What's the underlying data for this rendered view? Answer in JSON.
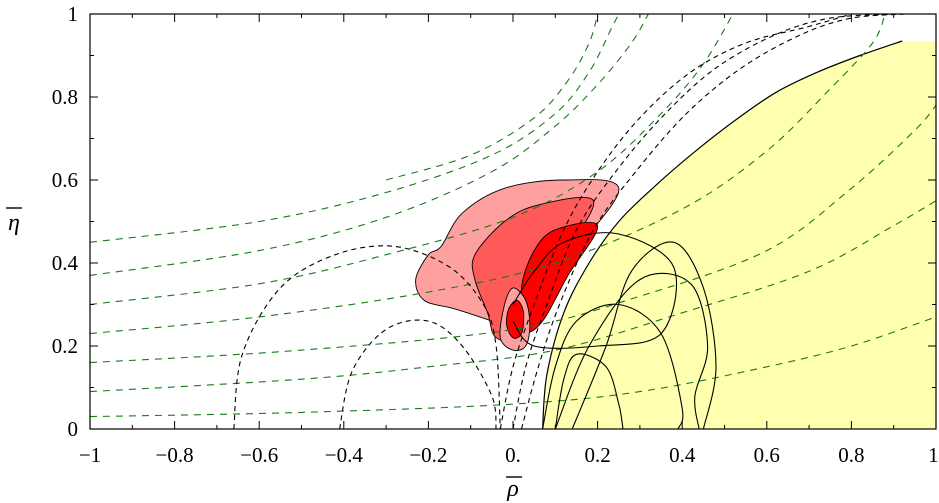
{
  "chart_data": {
    "type": "contour",
    "xlabel": "ρ",
    "ylabel": "η",
    "xlim": [
      -1,
      1
    ],
    "ylim": [
      0,
      1
    ],
    "x_ticks": [
      -1,
      -0.8,
      -0.6,
      -0.4,
      -0.2,
      0,
      0.2,
      0.4,
      0.6,
      0.8,
      1
    ],
    "x_tick_labels": [
      "−1",
      "−0.8",
      "−0.6",
      "−0.4",
      "−0.2",
      "0.",
      "0.2",
      "0.4",
      "0.6",
      "0.8",
      "1."
    ],
    "y_ticks": [
      0,
      0.2,
      0.4,
      0.6,
      0.8,
      1
    ],
    "y_tick_labels": [
      "0",
      "0.2",
      "0.4",
      "0.6",
      "0.8",
      "1"
    ],
    "overbar_on_axis_labels": true,
    "grid": false,
    "colors": {
      "allowed_region_fill": "#ffffb0",
      "confidence_outer": "#ffa0a0",
      "confidence_middle": "#ff5a5a",
      "confidence_inner": "#ff0000",
      "dashed_black": "#000000",
      "dashed_green": "#1a7a1a"
    },
    "regions": [
      {
        "id": "allowed-region",
        "boundary": [
          [
            0.07,
            0
          ],
          [
            0.08,
            0.13
          ],
          [
            0.12,
            0.28
          ],
          [
            0.18,
            0.4
          ],
          [
            0.25,
            0.5
          ],
          [
            0.33,
            0.58
          ],
          [
            0.42,
            0.66
          ],
          [
            0.52,
            0.74
          ],
          [
            0.62,
            0.81
          ],
          [
            0.72,
            0.86
          ],
          [
            0.82,
            0.9
          ],
          [
            0.92,
            0.935
          ],
          [
            1.0,
            0.935
          ],
          [
            1.0,
            0
          ]
        ]
      },
      {
        "id": "contour-outer",
        "boundary": [
          [
            -0.17,
            0.44
          ],
          [
            -0.12,
            0.52
          ],
          [
            -0.02,
            0.58
          ],
          [
            0.12,
            0.6
          ],
          [
            0.25,
            0.58
          ],
          [
            0.15,
            0.43
          ],
          [
            0.07,
            0.3
          ],
          [
            0.0,
            0.24
          ],
          [
            -0.05,
            0.26
          ],
          [
            -0.14,
            0.29
          ],
          [
            -0.21,
            0.31
          ],
          [
            -0.23,
            0.36
          ],
          [
            -0.2,
            0.42
          ]
        ]
      },
      {
        "id": "contour-middle",
        "boundary": [
          [
            -0.09,
            0.42
          ],
          [
            -0.02,
            0.5
          ],
          [
            0.06,
            0.54
          ],
          [
            0.19,
            0.55
          ],
          [
            0.12,
            0.42
          ],
          [
            0.06,
            0.32
          ],
          [
            0.02,
            0.22
          ],
          [
            -0.04,
            0.22
          ],
          [
            -0.06,
            0.28
          ],
          [
            -0.09,
            0.36
          ]
        ]
      },
      {
        "id": "contour-inner",
        "boundary": [
          [
            0.02,
            0.34
          ],
          [
            0.05,
            0.43
          ],
          [
            0.1,
            0.48
          ],
          [
            0.2,
            0.49
          ],
          [
            0.13,
            0.37
          ],
          [
            0.07,
            0.26
          ],
          [
            0.03,
            0.24
          ]
        ]
      },
      {
        "id": "contour-small",
        "boundary": [
          [
            -0.02,
            0.3
          ],
          [
            0.0,
            0.34
          ],
          [
            0.03,
            0.31
          ],
          [
            0.04,
            0.25
          ],
          [
            0.03,
            0.2
          ],
          [
            0.0,
            0.19
          ],
          [
            -0.03,
            0.22
          ]
        ]
      }
    ],
    "solid_curves": [
      [
        [
          0.07,
          0
        ],
        [
          0.1,
          0.15
        ],
        [
          0.15,
          0.26
        ],
        [
          0.25,
          0.3
        ],
        [
          0.35,
          0.23
        ],
        [
          0.4,
          0.05
        ],
        [
          0.39,
          0
        ]
      ],
      [
        [
          0.1,
          0
        ],
        [
          0.18,
          0.2
        ],
        [
          0.3,
          0.36
        ],
        [
          0.42,
          0.35
        ],
        [
          0.46,
          0.2
        ],
        [
          0.43,
          0.08
        ],
        [
          0.44,
          0
        ]
      ],
      [
        [
          0.14,
          0
        ],
        [
          0.22,
          0.2
        ],
        [
          0.28,
          0.38
        ],
        [
          0.38,
          0.45
        ],
        [
          0.45,
          0.34
        ],
        [
          0.48,
          0.15
        ],
        [
          0.45,
          0
        ]
      ],
      [
        [
          0.0,
          0.3
        ],
        [
          0.05,
          0.38
        ],
        [
          0.12,
          0.45
        ],
        [
          0.25,
          0.47
        ],
        [
          0.38,
          0.39
        ],
        [
          0.35,
          0.23
        ],
        [
          0.2,
          0.2
        ],
        [
          0.05,
          0.2
        ],
        [
          0.0,
          0.26
        ]
      ],
      [
        [
          0.1,
          0
        ],
        [
          0.12,
          0.12
        ],
        [
          0.15,
          0.18
        ],
        [
          0.22,
          0.15
        ],
        [
          0.25,
          0.06
        ],
        [
          0.26,
          0
        ]
      ]
    ],
    "dashed_black_curves": [
      [
        [
          -0.66,
          0
        ],
        [
          -0.64,
          0.18
        ],
        [
          -0.55,
          0.34
        ],
        [
          -0.42,
          0.42
        ],
        [
          -0.28,
          0.44
        ],
        [
          -0.15,
          0.39
        ],
        [
          -0.07,
          0.3
        ],
        [
          -0.04,
          0.2
        ],
        [
          -0.03,
          0
        ]
      ],
      [
        [
          -0.41,
          0
        ],
        [
          -0.38,
          0.14
        ],
        [
          -0.3,
          0.24
        ],
        [
          -0.2,
          0.26
        ],
        [
          -0.12,
          0.2
        ],
        [
          -0.05,
          0.08
        ],
        [
          -0.04,
          0
        ]
      ],
      [
        [
          -0.03,
          0
        ],
        [
          0.0,
          0.15
        ],
        [
          0.05,
          0.3
        ],
        [
          0.12,
          0.48
        ],
        [
          0.2,
          0.62
        ],
        [
          0.3,
          0.75
        ],
        [
          0.42,
          0.86
        ],
        [
          0.55,
          0.93
        ],
        [
          0.7,
          0.97
        ],
        [
          0.8,
          1.0
        ]
      ],
      [
        [
          0.0,
          0
        ],
        [
          0.03,
          0.15
        ],
        [
          0.08,
          0.3
        ],
        [
          0.15,
          0.48
        ],
        [
          0.25,
          0.63
        ],
        [
          0.36,
          0.76
        ],
        [
          0.48,
          0.87
        ],
        [
          0.62,
          0.95
        ],
        [
          0.75,
          0.99
        ],
        [
          0.9,
          1.0
        ]
      ],
      [
        [
          0.02,
          0
        ],
        [
          0.06,
          0.15
        ],
        [
          0.11,
          0.3
        ],
        [
          0.19,
          0.48
        ],
        [
          0.29,
          0.62
        ],
        [
          0.41,
          0.76
        ],
        [
          0.54,
          0.87
        ],
        [
          0.68,
          0.95
        ],
        [
          0.8,
          0.99
        ],
        [
          0.93,
          1.0
        ]
      ]
    ],
    "dashed_green_curves": [
      [
        [
          -1,
          0.03
        ],
        [
          -0.5,
          0.04
        ],
        [
          0,
          0.06
        ],
        [
          0.3,
          0.09
        ],
        [
          0.6,
          0.15
        ],
        [
          0.8,
          0.2
        ],
        [
          1.0,
          0.27
        ]
      ],
      [
        [
          -1,
          0.09
        ],
        [
          -0.5,
          0.12
        ],
        [
          -0.2,
          0.15
        ],
        [
          0.1,
          0.19
        ],
        [
          0.4,
          0.28
        ],
        [
          0.7,
          0.38
        ],
        [
          0.9,
          0.49
        ],
        [
          1.0,
          0.55
        ]
      ],
      [
        [
          -1,
          0.16
        ],
        [
          -0.5,
          0.19
        ],
        [
          0,
          0.24
        ],
        [
          0.3,
          0.32
        ],
        [
          0.6,
          0.43
        ],
        [
          0.8,
          0.58
        ],
        [
          0.95,
          0.72
        ],
        [
          1.0,
          0.78
        ]
      ],
      [
        [
          -1,
          0.23
        ],
        [
          -0.6,
          0.27
        ],
        [
          -0.2,
          0.33
        ],
        [
          0.1,
          0.4
        ],
        [
          0.4,
          0.53
        ],
        [
          0.6,
          0.67
        ],
        [
          0.75,
          0.82
        ],
        [
          0.85,
          0.93
        ],
        [
          0.88,
          1.0
        ]
      ],
      [
        [
          -1,
          0.3
        ],
        [
          -0.6,
          0.35
        ],
        [
          -0.3,
          0.42
        ],
        [
          0,
          0.51
        ],
        [
          0.2,
          0.62
        ],
        [
          0.35,
          0.76
        ],
        [
          0.45,
          0.88
        ],
        [
          0.52,
          1.0
        ]
      ],
      [
        [
          -1,
          0.37
        ],
        [
          -0.6,
          0.43
        ],
        [
          -0.3,
          0.51
        ],
        [
          -0.05,
          0.62
        ],
        [
          0.1,
          0.73
        ],
        [
          0.2,
          0.83
        ],
        [
          0.28,
          0.93
        ],
        [
          0.32,
          1.0
        ]
      ],
      [
        [
          -1,
          0.45
        ],
        [
          -0.6,
          0.5
        ],
        [
          -0.3,
          0.57
        ],
        [
          -0.05,
          0.66
        ],
        [
          0.1,
          0.76
        ],
        [
          0.18,
          0.86
        ],
        [
          0.23,
          0.96
        ],
        [
          0.25,
          1.0
        ]
      ],
      [
        [
          -0.3,
          0.6
        ],
        [
          -0.1,
          0.66
        ],
        [
          0.05,
          0.75
        ],
        [
          0.13,
          0.84
        ],
        [
          0.18,
          0.93
        ],
        [
          0.2,
          1.0
        ]
      ]
    ]
  }
}
